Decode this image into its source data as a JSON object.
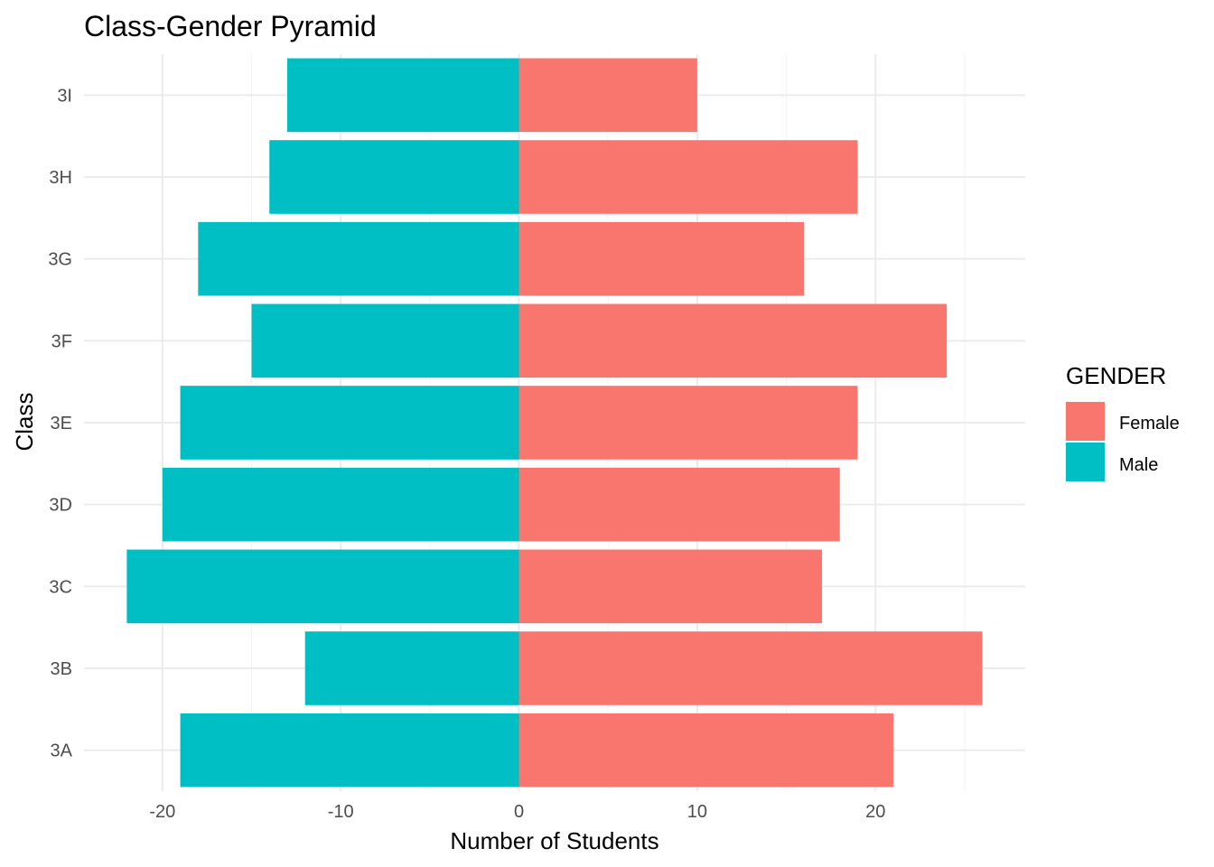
{
  "chart_data": {
    "type": "bar",
    "orientation": "horizontal",
    "title": "Class-Gender Pyramid",
    "xlabel": "Number of Students",
    "ylabel": "Class",
    "categories": [
      "3A",
      "3B",
      "3C",
      "3D",
      "3E",
      "3F",
      "3G",
      "3H",
      "3I"
    ],
    "series": [
      {
        "name": "Female",
        "color": "#F8766D",
        "values": [
          21,
          26,
          17,
          18,
          19,
          24,
          16,
          19,
          10
        ]
      },
      {
        "name": "Male",
        "color": "#00BFC4",
        "values": [
          -19,
          -12,
          -22,
          -20,
          -19,
          -15,
          -18,
          -14,
          -13
        ]
      }
    ],
    "xlim": [
      -24.4,
      28.4
    ],
    "xticks": [
      -20,
      -10,
      0,
      10,
      20
    ],
    "xtick_labels": [
      "-20",
      "-10",
      "0",
      "10",
      "20"
    ],
    "grid": true,
    "legend": {
      "title": "GENDER",
      "position": "right",
      "entries": [
        "Female",
        "Male"
      ]
    }
  }
}
